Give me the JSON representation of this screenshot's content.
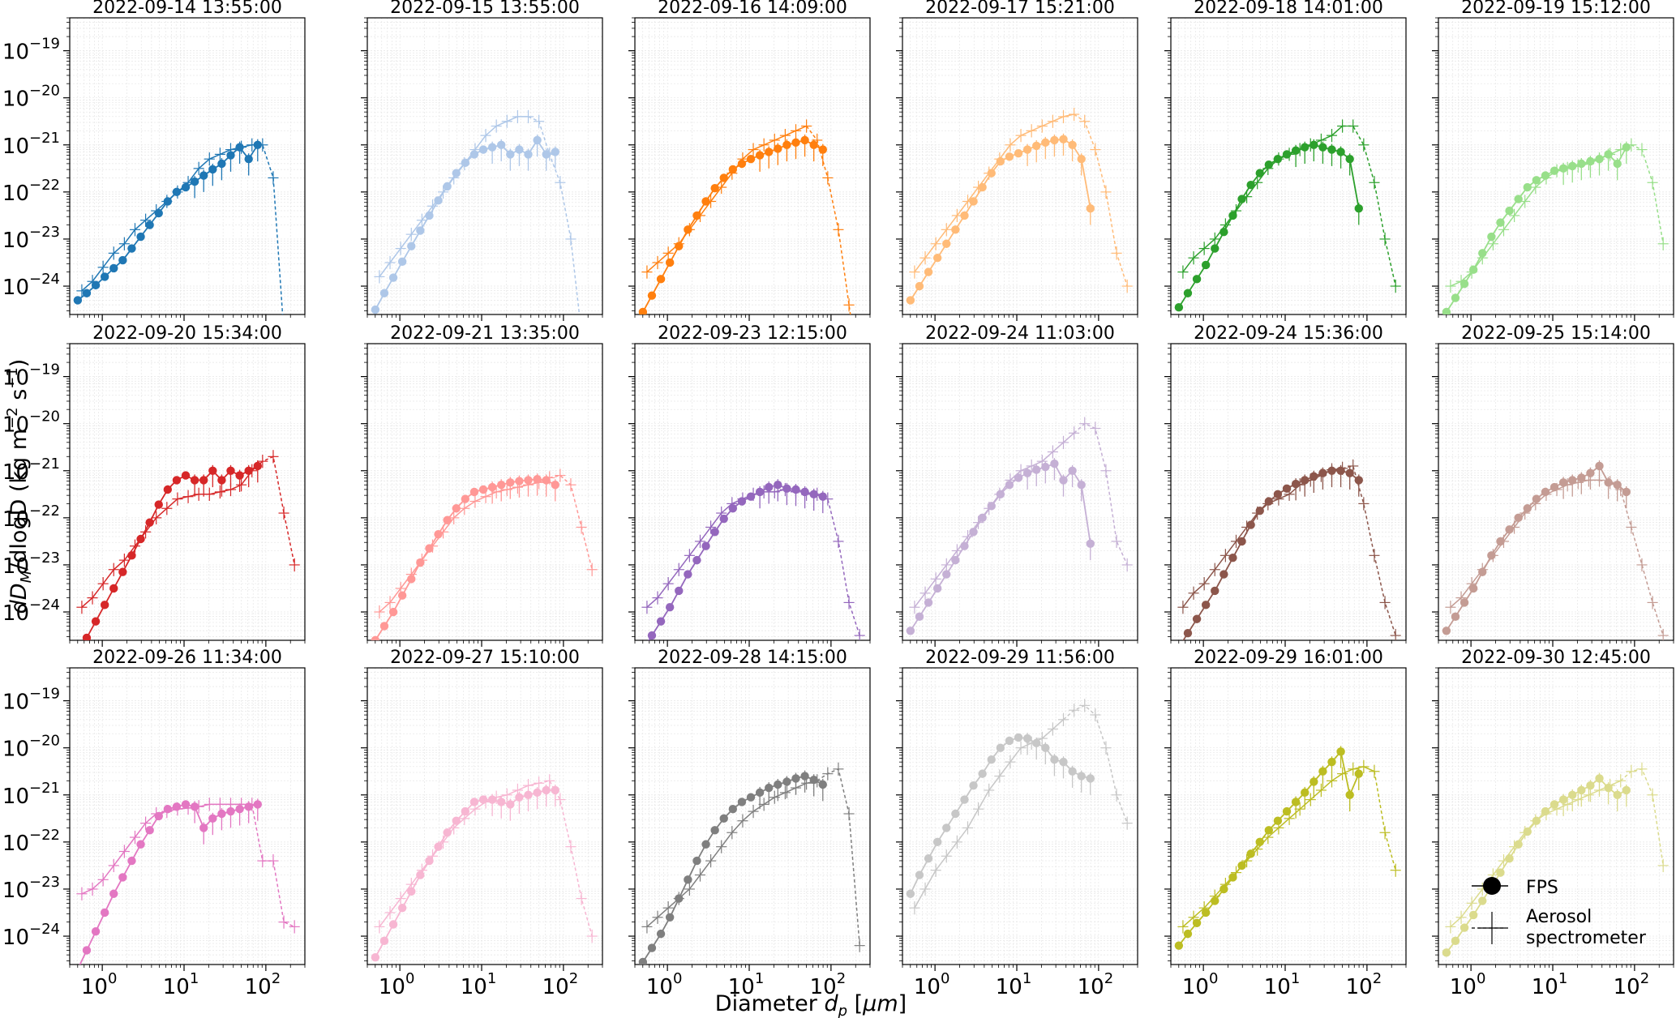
{
  "figure": {
    "ylabel": "dD_M/dlogD (kg m⁻² s⁻¹)",
    "ylabel_parts": {
      "d1": "d",
      "D": "D",
      "M": "M",
      "rest": "/dlogD (kg m",
      "exp1": "−2",
      "s": " s",
      "exp2": "−1",
      "close": ")"
    },
    "xlabel_parts": {
      "prefix": "Diameter ",
      "d": "d",
      "p": "p",
      "unit_open": " [",
      "mu": "μ",
      "m": "m",
      "unit_close": "]"
    },
    "xlabel": "Diameter d_p [μm]",
    "x_ticks": [
      {
        "base": "10",
        "exp": "0",
        "value": 1
      },
      {
        "base": "10",
        "exp": "1",
        "value": 10
      },
      {
        "base": "10",
        "exp": "2",
        "value": 100
      }
    ],
    "y_ticks": [
      {
        "base": "10",
        "exp": "−24",
        "value": -24
      },
      {
        "base": "10",
        "exp": "−23",
        "value": -23
      },
      {
        "base": "10",
        "exp": "−22",
        "value": -22
      },
      {
        "base": "10",
        "exp": "−21",
        "value": -21
      },
      {
        "base": "10",
        "exp": "−20",
        "value": -20
      },
      {
        "base": "10",
        "exp": "−19",
        "value": -19
      }
    ],
    "legend": {
      "fps": "FPS",
      "aero_line1": "Aerosol",
      "aero_line2": "spectrometer",
      "placement": "lower-right of last panel"
    }
  },
  "chart_data": {
    "type": "line",
    "x_scale": "log",
    "y_scale": "log",
    "xlim": [
      0.4,
      300
    ],
    "ylim": [
      2.5e-25,
      5e-19
    ],
    "grid": true,
    "series_names": [
      "FPS",
      "Aerosol spectrometer"
    ],
    "panels": [
      {
        "title": "2022-09-14 13:55:00",
        "color": "#1f77b4",
        "fps_y": [
          -24.3,
          -24.15,
          -23.98,
          -23.8,
          -23.62,
          -23.45,
          -23.2,
          -22.95,
          -22.7,
          -22.45,
          -22.2,
          -22.0,
          -21.9,
          -21.78,
          -21.65,
          -21.52,
          -21.4,
          -21.22,
          -21.05,
          -21.3,
          -21.0
        ],
        "aero_y": [
          -24.1,
          -23.9,
          -23.6,
          -23.3,
          -23.1,
          -22.8,
          -22.6,
          -22.4,
          -22.2,
          -22.0,
          -21.8,
          -21.5,
          -21.3,
          -21.2,
          -21.1,
          -21.05,
          -21.0,
          -21.0,
          -21.7,
          -25.0,
          -26.0
        ],
        "aero_solid": 17
      },
      {
        "title": "2022-09-15 13:55:00",
        "color": "#aec7e8",
        "fps_y": [
          -24.5,
          -24.15,
          -23.82,
          -23.48,
          -23.15,
          -22.82,
          -22.5,
          -22.18,
          -21.88,
          -21.6,
          -21.38,
          -21.2,
          -21.1,
          -21.05,
          -21.0,
          -21.2,
          -21.1,
          -21.2,
          -20.9,
          -21.2,
          -21.15
        ],
        "aero_y": [
          -23.8,
          -23.5,
          -23.2,
          -22.9,
          -22.6,
          -22.3,
          -22.0,
          -21.7,
          -21.4,
          -21.1,
          -20.8,
          -20.6,
          -20.5,
          -20.4,
          -20.4,
          -20.5,
          -21.2,
          -21.8,
          -23.0,
          -25.0,
          -26.0
        ],
        "aero_solid": 15
      },
      {
        "title": "2022-09-16 14:09:00",
        "color": "#ff7f0e",
        "fps_y": [
          -24.55,
          -24.2,
          -23.85,
          -23.5,
          -23.15,
          -22.8,
          -22.5,
          -22.2,
          -21.92,
          -21.7,
          -21.52,
          -21.4,
          -21.3,
          -21.22,
          -21.15,
          -21.08,
          -21.0,
          -20.95,
          -20.9,
          -21.0,
          -21.1
        ],
        "aero_y": [
          -23.7,
          -23.5,
          -23.3,
          -23.1,
          -22.8,
          -22.5,
          -22.2,
          -21.9,
          -21.6,
          -21.3,
          -21.1,
          -21.0,
          -20.9,
          -20.8,
          -20.7,
          -20.6,
          -20.9,
          -21.7,
          -22.8,
          -24.4,
          -26.0
        ],
        "aero_solid": 16
      },
      {
        "title": "2022-09-17 15:21:00",
        "color": "#ffbb78",
        "fps_y": [
          -24.3,
          -24.0,
          -23.7,
          -23.4,
          -23.1,
          -22.8,
          -22.5,
          -22.2,
          -21.9,
          -21.6,
          -21.35,
          -21.25,
          -21.18,
          -21.1,
          -21.02,
          -20.95,
          -20.9,
          -20.88,
          -21.0,
          -21.3,
          -22.35
        ],
        "aero_y": [
          -23.7,
          -23.4,
          -23.1,
          -22.8,
          -22.5,
          -22.2,
          -21.9,
          -21.6,
          -21.3,
          -21.0,
          -20.8,
          -20.7,
          -20.6,
          -20.5,
          -20.4,
          -20.35,
          -20.5,
          -21.1,
          -22.0,
          -23.3,
          -24.0
        ],
        "aero_solid": 16
      },
      {
        "title": "2022-09-18 14:01:00",
        "color": "#2ca02c",
        "fps_y": [
          -24.45,
          -24.15,
          -23.85,
          -23.55,
          -23.2,
          -22.85,
          -22.5,
          -22.15,
          -21.85,
          -21.6,
          -21.42,
          -21.3,
          -21.2,
          -21.12,
          -21.05,
          -21.0,
          -21.05,
          -21.1,
          -21.15,
          -21.3,
          -22.35
        ],
        "aero_y": [
          -23.7,
          -23.4,
          -23.2,
          -23.0,
          -22.7,
          -22.4,
          -22.1,
          -21.8,
          -21.5,
          -21.3,
          -21.2,
          -21.1,
          -21.0,
          -20.9,
          -20.8,
          -20.6,
          -20.6,
          -21.0,
          -21.8,
          -23.0,
          -24.0
        ],
        "aero_solid": 16
      },
      {
        "title": "2022-09-19 15:12:00",
        "color": "#98df8a",
        "fps_y": [
          -24.55,
          -24.25,
          -23.95,
          -23.65,
          -23.3,
          -22.95,
          -22.65,
          -22.4,
          -22.15,
          -21.9,
          -21.75,
          -21.65,
          -21.55,
          -21.5,
          -21.45,
          -21.4,
          -21.35,
          -21.3,
          -21.2,
          -21.4,
          -21.05
        ],
        "aero_y": [
          -24.0,
          -23.9,
          -23.7,
          -23.4,
          -23.1,
          -22.8,
          -22.5,
          -22.2,
          -21.9,
          -21.7,
          -21.55,
          -21.5,
          -21.45,
          -21.4,
          -21.3,
          -21.2,
          -21.1,
          -21.0,
          -21.1,
          -21.8,
          -23.1
        ],
        "aero_solid": 17
      },
      {
        "title": "2022-09-20 15:34:00",
        "color": "#d62728",
        "fps_y": [
          -24.9,
          -24.55,
          -24.2,
          -23.85,
          -23.5,
          -23.15,
          -22.8,
          -22.45,
          -22.1,
          -21.72,
          -21.4,
          -21.2,
          -21.1,
          -21.2,
          -21.2,
          -21.0,
          -21.2,
          -21.0,
          -21.1,
          -21.0,
          -20.9
        ],
        "aero_y": [
          -23.9,
          -23.7,
          -23.4,
          -23.1,
          -22.9,
          -22.6,
          -22.3,
          -22.0,
          -21.8,
          -21.6,
          -21.55,
          -21.5,
          -21.5,
          -21.45,
          -21.4,
          -21.3,
          -21.0,
          -20.8,
          -20.7,
          -21.9,
          -23.0
        ],
        "aero_solid": 17
      },
      {
        "title": "2022-09-21 13:35:00",
        "color": "#ff9896",
        "fps_y": [
          -24.6,
          -24.3,
          -24.0,
          -23.65,
          -23.3,
          -22.95,
          -22.65,
          -22.35,
          -22.05,
          -21.8,
          -21.6,
          -21.45,
          -21.4,
          -21.35,
          -21.3,
          -21.25,
          -21.22,
          -21.2,
          -21.18,
          -21.2,
          -21.3
        ],
        "aero_y": [
          -24.0,
          -23.8,
          -23.5,
          -23.2,
          -22.9,
          -22.6,
          -22.3,
          -22.0,
          -21.8,
          -21.65,
          -21.55,
          -21.45,
          -21.4,
          -21.35,
          -21.3,
          -21.25,
          -21.15,
          -21.1,
          -21.3,
          -22.2,
          -23.1
        ],
        "aero_solid": 17
      },
      {
        "title": "2022-09-23 12:15:00",
        "color": "#9467bd",
        "fps_y": [
          -24.8,
          -24.5,
          -24.2,
          -23.9,
          -23.55,
          -23.2,
          -22.9,
          -22.6,
          -22.3,
          -22.02,
          -21.8,
          -21.65,
          -21.55,
          -21.45,
          -21.35,
          -21.3,
          -21.38,
          -21.4,
          -21.45,
          -21.5,
          -21.55
        ],
        "aero_y": [
          -23.9,
          -23.7,
          -23.4,
          -23.1,
          -22.8,
          -22.5,
          -22.2,
          -21.9,
          -21.7,
          -21.6,
          -21.5,
          -21.45,
          -21.45,
          -21.4,
          -21.45,
          -21.5,
          -21.5,
          -21.6,
          -22.5,
          -23.8,
          -24.5
        ],
        "aero_solid": 15
      },
      {
        "title": "2022-09-24 11:03:00",
        "color": "#c5b0d5",
        "fps_y": [
          -24.4,
          -24.1,
          -23.8,
          -23.5,
          -23.2,
          -22.9,
          -22.6,
          -22.3,
          -22.0,
          -21.75,
          -21.5,
          -21.3,
          -21.15,
          -21.05,
          -20.98,
          -20.92,
          -20.85,
          -21.2,
          -21.0,
          -21.3,
          -22.55
        ],
        "aero_y": [
          -23.9,
          -23.6,
          -23.3,
          -23.0,
          -22.7,
          -22.4,
          -22.1,
          -21.8,
          -21.5,
          -21.2,
          -21.0,
          -20.9,
          -20.8,
          -20.6,
          -20.4,
          -20.2,
          -20.0,
          -20.1,
          -21.0,
          -22.5,
          -23.0
        ],
        "aero_solid": 16
      },
      {
        "title": "2022-09-24 15:36:00",
        "color": "#8c564b",
        "fps_y": [
          -24.75,
          -24.45,
          -24.15,
          -23.85,
          -23.55,
          -23.2,
          -22.85,
          -22.5,
          -22.15,
          -21.85,
          -21.65,
          -21.5,
          -21.38,
          -21.28,
          -21.2,
          -21.12,
          -21.05,
          -21.0,
          -21.0,
          -21.05,
          -21.2
        ],
        "aero_y": [
          -23.9,
          -23.6,
          -23.4,
          -23.1,
          -22.8,
          -22.5,
          -22.2,
          -21.9,
          -21.7,
          -21.6,
          -21.5,
          -21.3,
          -21.2,
          -21.1,
          -20.98,
          -20.95,
          -20.9,
          -21.7,
          -22.8,
          -23.8,
          -24.5
        ],
        "aero_solid": 16
      },
      {
        "title": "2022-09-25 15:14:00",
        "color": "#c49c94",
        "fps_y": [
          -24.4,
          -24.1,
          -23.8,
          -23.5,
          -23.15,
          -22.8,
          -22.5,
          -22.25,
          -22.0,
          -21.8,
          -21.6,
          -21.45,
          -21.35,
          -21.25,
          -21.2,
          -21.15,
          -21.05,
          -20.9,
          -21.25,
          -21.3,
          -21.45
        ],
        "aero_y": [
          -23.9,
          -23.7,
          -23.4,
          -23.1,
          -22.8,
          -22.5,
          -22.2,
          -21.9,
          -21.7,
          -21.5,
          -21.4,
          -21.3,
          -21.25,
          -21.2,
          -21.2,
          -21.25,
          -21.4,
          -22.2,
          -23.0,
          -23.8,
          -24.5
        ],
        "aero_solid": 15
      },
      {
        "title": "2022-09-26 11:34:00",
        "color": "#e377c2",
        "fps_y": [
          -24.7,
          -24.3,
          -23.9,
          -23.5,
          -23.1,
          -22.75,
          -22.4,
          -22.05,
          -21.75,
          -21.45,
          -21.3,
          -21.25,
          -21.2,
          -21.25,
          -21.7,
          -21.5,
          -21.4,
          -21.35,
          -21.3,
          -21.25,
          -21.2
        ],
        "aero_y": [
          -23.1,
          -23.0,
          -22.8,
          -22.5,
          -22.2,
          -21.9,
          -21.6,
          -21.4,
          -21.35,
          -21.3,
          -21.28,
          -21.25,
          -21.2,
          -21.2,
          -21.2,
          -21.2,
          -21.2,
          -22.4,
          -22.4,
          -23.7,
          -23.8
        ],
        "aero_solid": 16
      },
      {
        "title": "2022-09-27 15:10:00",
        "color": "#f7b6d2",
        "fps_y": [
          -24.45,
          -24.1,
          -23.75,
          -23.4,
          -23.05,
          -22.7,
          -22.4,
          -22.1,
          -21.8,
          -21.55,
          -21.35,
          -21.15,
          -21.1,
          -21.1,
          -21.15,
          -21.2,
          -21.05,
          -21.0,
          -20.95,
          -20.9,
          -20.9
        ],
        "aero_y": [
          -23.8,
          -23.5,
          -23.2,
          -22.9,
          -22.6,
          -22.3,
          -22.0,
          -21.7,
          -21.5,
          -21.3,
          -21.15,
          -21.05,
          -21.0,
          -20.9,
          -20.8,
          -20.75,
          -20.7,
          -21.1,
          -22.1,
          -23.2,
          -24.0
        ],
        "aero_solid": 16
      },
      {
        "title": "2022-09-28 14:15:00",
        "color": "#7f7f7f",
        "fps_y": [
          -24.55,
          -24.25,
          -23.95,
          -23.6,
          -23.2,
          -22.8,
          -22.4,
          -22.05,
          -21.75,
          -21.5,
          -21.3,
          -21.15,
          -21.05,
          -20.95,
          -20.85,
          -20.78,
          -20.72,
          -20.65,
          -20.6,
          -20.68,
          -20.78
        ],
        "aero_y": [
          -23.8,
          -23.6,
          -23.4,
          -23.2,
          -23.0,
          -22.7,
          -22.4,
          -22.1,
          -21.8,
          -21.55,
          -21.35,
          -21.2,
          -21.05,
          -20.95,
          -20.85,
          -20.75,
          -20.7,
          -20.55,
          -20.45,
          -21.4,
          -24.2
        ],
        "aero_solid": 17
      },
      {
        "title": "2022-09-29 11:56:00",
        "color": "#c7c7c7",
        "fps_y": [
          -23.1,
          -22.7,
          -22.35,
          -22.0,
          -21.7,
          -21.4,
          -21.1,
          -20.8,
          -20.55,
          -20.25,
          -20.0,
          -19.85,
          -19.78,
          -19.8,
          -19.9,
          -20.0,
          -20.25,
          -20.3,
          -20.5,
          -20.6,
          -20.65
        ],
        "aero_y": [
          -23.4,
          -23.0,
          -22.6,
          -22.3,
          -22.0,
          -21.7,
          -21.3,
          -20.9,
          -20.6,
          -20.3,
          -20.0,
          -19.9,
          -19.8,
          -19.6,
          -19.4,
          -19.2,
          -19.1,
          -19.3,
          -20.0,
          -21.0,
          -21.6
        ],
        "aero_solid": 15
      },
      {
        "title": "2022-09-29 16:01:00",
        "color": "#bcbd22",
        "fps_y": [
          -24.2,
          -23.95,
          -23.72,
          -23.5,
          -23.25,
          -23.0,
          -22.75,
          -22.5,
          -22.25,
          -22.0,
          -21.75,
          -21.55,
          -21.35,
          -21.15,
          -20.95,
          -20.72,
          -20.5,
          -20.3,
          -20.08,
          -21.0,
          -20.55
        ],
        "aero_y": [
          -23.8,
          -23.6,
          -23.4,
          -23.15,
          -22.9,
          -22.65,
          -22.4,
          -22.15,
          -21.9,
          -21.7,
          -21.5,
          -21.3,
          -21.1,
          -20.9,
          -20.7,
          -20.55,
          -20.45,
          -20.4,
          -20.5,
          -21.8,
          -22.6
        ],
        "aero_solid": 19
      },
      {
        "title": "2022-09-30 12:45:00",
        "color": "#dbdb8d",
        "fps_y": [
          -24.35,
          -24.1,
          -23.82,
          -23.55,
          -23.25,
          -22.95,
          -22.65,
          -22.35,
          -22.05,
          -21.78,
          -21.55,
          -21.35,
          -21.2,
          -21.1,
          -21.0,
          -20.9,
          -20.8,
          -20.65,
          -20.85,
          -21.0,
          -20.9
        ],
        "aero_y": [
          -23.8,
          -23.6,
          -23.3,
          -23.0,
          -22.7,
          -22.4,
          -22.1,
          -21.8,
          -21.55,
          -21.4,
          -21.3,
          -21.2,
          -21.1,
          -21.0,
          -20.9,
          -20.8,
          -20.7,
          -20.5,
          -20.45,
          -21.0,
          -22.5
        ],
        "aero_solid": 17
      }
    ]
  }
}
